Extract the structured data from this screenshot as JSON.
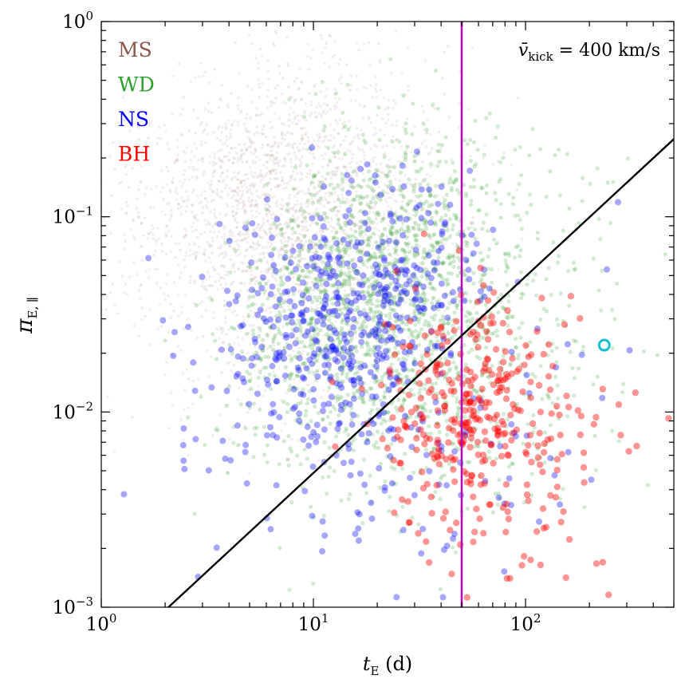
{
  "chart_data": {
    "type": "scatter",
    "xscale": "log",
    "yscale": "log",
    "xlim": [
      1,
      500
    ],
    "ylim": [
      0.001,
      1
    ],
    "xlabel": {
      "main": "t",
      "sub": "E",
      "unit": "(d)"
    },
    "ylabel": {
      "main": "π",
      "sub": "E, ∥"
    },
    "x_ticks": [
      {
        "base": "10",
        "exp": "0",
        "value": 1
      },
      {
        "base": "10",
        "exp": "1",
        "value": 10
      },
      {
        "base": "10",
        "exp": "2",
        "value": 100
      }
    ],
    "y_ticks": [
      {
        "base": "10",
        "exp": "−3",
        "value": 0.001
      },
      {
        "base": "10",
        "exp": "−2",
        "value": 0.01
      },
      {
        "base": "10",
        "exp": "−1",
        "value": 0.1
      },
      {
        "base": "10",
        "exp": "0",
        "value": 1
      }
    ],
    "annotation": {
      "symbol": "v̄",
      "sub": "kick",
      "rest": " = 400 km/s"
    },
    "legend": {
      "placement": "top-left"
    },
    "series": [
      {
        "name": "MS",
        "color": "#8c564b",
        "alpha": 0.1,
        "size": 1.8,
        "count": 2600,
        "clusters": [
          {
            "logx": 0.75,
            "logy": -0.85,
            "sx": 0.34,
            "sy": 0.34,
            "rho": 0.3,
            "weight": 0.55
          },
          {
            "logx": 1.05,
            "logy": -1.2,
            "sx": 0.33,
            "sy": 0.38,
            "rho": 0.35,
            "weight": 0.45
          }
        ]
      },
      {
        "name": "WD",
        "color": "#2ca02c",
        "alpha": 0.22,
        "size": 2.6,
        "count": 2100,
        "clusters": [
          {
            "logx": 1.25,
            "logy": -1.35,
            "sx": 0.3,
            "sy": 0.38,
            "rho": 0.3,
            "weight": 0.65
          },
          {
            "logx": 1.6,
            "logy": -1.7,
            "sx": 0.38,
            "sy": 0.42,
            "rho": 0.2,
            "weight": 0.35
          }
        ]
      },
      {
        "name": "NS",
        "color": "#0000ff",
        "alpha": 0.35,
        "size": 4,
        "count": 620,
        "clusters": [
          {
            "logx": 1.15,
            "logy": -1.5,
            "sx": 0.3,
            "sy": 0.35,
            "rho": 0.3,
            "weight": 0.75
          },
          {
            "logx": 1.4,
            "logy": -2.1,
            "sx": 0.45,
            "sy": 0.4,
            "rho": 0.1,
            "weight": 0.25
          }
        ]
      },
      {
        "name": "BH",
        "color": "#ff0000",
        "alpha": 0.42,
        "size": 4.2,
        "count": 380,
        "clusters": [
          {
            "logx": 1.72,
            "logy": -1.95,
            "sx": 0.22,
            "sy": 0.28,
            "rho": 0.2,
            "weight": 0.75
          },
          {
            "logx": 2.0,
            "logy": -2.4,
            "sx": 0.25,
            "sy": 0.35,
            "rho": 0.0,
            "weight": 0.25
          }
        ]
      }
    ],
    "vertical_line": {
      "x": 50,
      "color": "#b30fb3"
    },
    "diagonal_line": {
      "x1": 1,
      "y1": 0.00048,
      "x2": 500,
      "y2": 0.25,
      "color": "#000000"
    },
    "highlight_point": {
      "x": 235,
      "y": 0.022,
      "color": "#17becf"
    }
  }
}
